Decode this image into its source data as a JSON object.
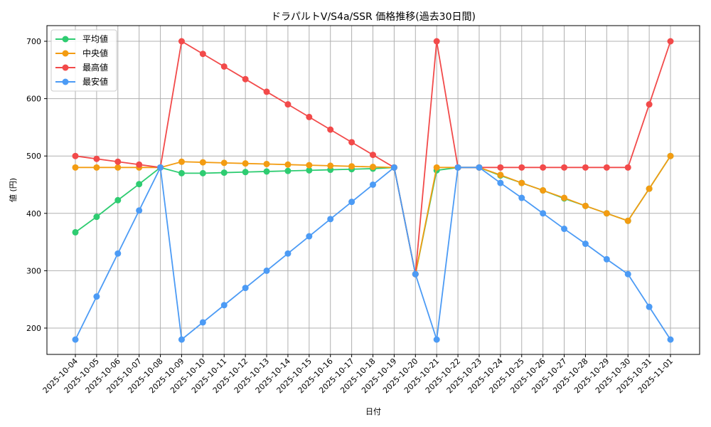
{
  "chart_data": {
    "type": "line",
    "title": "ドラパルトV/S4a/SSR 価格推移(過去30日間)",
    "xlabel": "日付",
    "ylabel": "値 (円)",
    "ylim": [
      155,
      727
    ],
    "yticks": [
      200,
      300,
      400,
      500,
      600,
      700
    ],
    "grid": true,
    "legend_position": "upper left",
    "categories": [
      "2025-10-04",
      "2025-10-05",
      "2025-10-06",
      "2025-10-07",
      "2025-10-08",
      "2025-10-09",
      "2025-10-10",
      "2025-10-11",
      "2025-10-12",
      "2025-10-13",
      "2025-10-14",
      "2025-10-15",
      "2025-10-16",
      "2025-10-17",
      "2025-10-18",
      "2025-10-19",
      "2025-10-20",
      "2025-10-21",
      "2025-10-22",
      "2025-10-23",
      "2025-10-24",
      "2025-10-25",
      "2025-10-26",
      "2025-10-27",
      "2025-10-28",
      "2025-10-29",
      "2025-10-30",
      "2025-10-31",
      "2025-11-01"
    ],
    "series": [
      {
        "name": "平均値",
        "color": "#2ecc71",
        "values": [
          367,
          394,
          423,
          451,
          480,
          470,
          470,
          471,
          472,
          473,
          474,
          475,
          476,
          477,
          478,
          480,
          294,
          475,
          480,
          480,
          466,
          453,
          440,
          426,
          413,
          400,
          387,
          443,
          500
        ]
      },
      {
        "name": "中央値",
        "color": "#f39c12",
        "values": [
          480,
          480,
          480,
          480,
          480,
          490,
          489,
          488,
          487,
          486,
          485,
          484,
          483,
          482,
          481,
          480,
          294,
          480,
          480,
          480,
          467,
          453,
          440,
          427,
          413,
          400,
          387,
          443,
          500
        ]
      },
      {
        "name": "最高値",
        "color": "#f24a4a",
        "values": [
          500,
          495,
          490,
          485,
          480,
          700,
          678,
          656,
          634,
          612,
          590,
          568,
          546,
          524,
          502,
          480,
          294,
          700,
          480,
          480,
          480,
          480,
          480,
          480,
          480,
          480,
          480,
          590,
          700
        ]
      },
      {
        "name": "最安値",
        "color": "#4c9bf5",
        "values": [
          180,
          255,
          330,
          405,
          480,
          180,
          210,
          240,
          270,
          300,
          330,
          360,
          390,
          420,
          450,
          480,
          294,
          180,
          480,
          480,
          453,
          427,
          400,
          373,
          347,
          320,
          294,
          237,
          180
        ]
      }
    ]
  }
}
